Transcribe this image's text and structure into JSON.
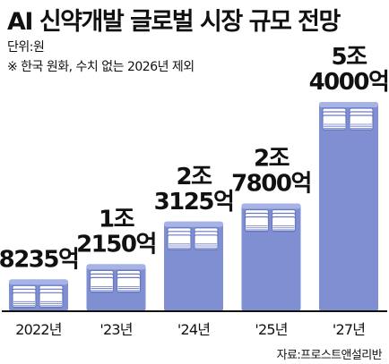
{
  "header": {
    "title": "AI 신약개발 글로벌 시장 규모 전망",
    "unit": "단위:원",
    "note": "※ 한국 원화, 수치 없는 2026년 제외"
  },
  "source": "자료:프로스트앤설리반",
  "colors": {
    "bar": "#7f8fd1",
    "bar_top": "#a7b3e6",
    "paper": "#ffffff",
    "paper_edge": "#6a79c0",
    "baseline": "#111111"
  },
  "icon": "money-stack-icon",
  "chart_data": {
    "type": "bar",
    "title": "AI 신약개발 글로벌 시장 규모 전망",
    "unit": "원",
    "categories": [
      "2022년",
      "'23년",
      "'24년",
      "'25년",
      "'27년"
    ],
    "values": [
      823500000000,
      1215000000000,
      2312500000000,
      2780000000000,
      5400000000000
    ],
    "data_labels": [
      [
        "8235억"
      ],
      [
        "1조",
        "2150억"
      ],
      [
        "2조",
        "3125억"
      ],
      [
        "2조",
        "7800억"
      ],
      [
        "5조",
        "4000억"
      ]
    ],
    "ylim": [
      0,
      5400000000000
    ],
    "grid": false,
    "legend": "none"
  }
}
